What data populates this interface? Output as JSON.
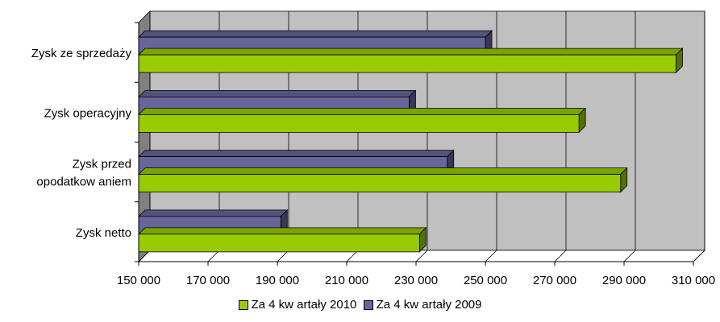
{
  "chart_data": {
    "type": "bar",
    "orientation": "horizontal",
    "title": "",
    "categories": [
      "Zysk ze sprzedaży",
      "Zysk operacyjny",
      "Zysk przed opodatkow aniem",
      "Zysk netto"
    ],
    "category_lines": [
      [
        "Zysk ze sprzedaży"
      ],
      [
        "Zysk operacyjny"
      ],
      [
        "Zysk przed",
        "opodatkow aniem"
      ],
      [
        "Zysk netto"
      ]
    ],
    "series": [
      {
        "name": "Za 4 kw artały 2009",
        "color": "#66669A",
        "values": [
          250000,
          228000,
          239000,
          191000
        ]
      },
      {
        "name": "Za 4 kw artały 2010",
        "color": "#99CC00",
        "values": [
          305000,
          277000,
          289000,
          231000
        ]
      }
    ],
    "legend_order": [
      "Za 4 kw artały 2010",
      "Za 4 kw artały 2009"
    ],
    "xlim": [
      150000,
      310000
    ],
    "x_ticks": [
      150000,
      170000,
      190000,
      210000,
      230000,
      250000,
      270000,
      290000,
      310000
    ],
    "x_tick_labels": [
      "150 000",
      "170 000",
      "190 000",
      "210 000",
      "230 000",
      "250 000",
      "270 000",
      "290 000",
      "310 000"
    ],
    "grid": true,
    "legend_position": "bottom",
    "background_color": "#C0C0C0"
  }
}
